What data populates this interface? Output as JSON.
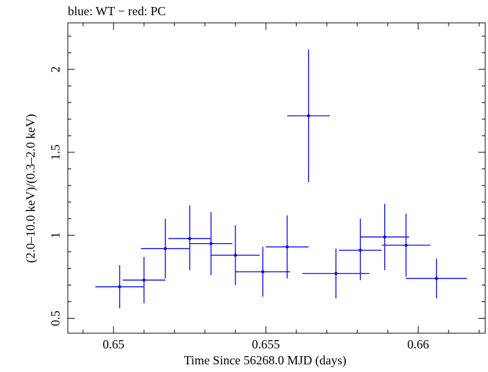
{
  "chart_data": {
    "type": "scatter",
    "title": "blue: WT − red: PC",
    "xlabel": "Time Since 56268.0 MJD (days)",
    "ylabel": "(2.0–10.0 keV)/(0.3–2.0 keV)",
    "xlim": [
      0.6485,
      0.6622
    ],
    "ylim": [
      0.41,
      2.28
    ],
    "x_ticks": [
      0.65,
      0.655,
      0.66
    ],
    "x_tick_labels": [
      "0.65",
      "0.655",
      "0.66"
    ],
    "y_ticks": [
      0.5,
      1,
      1.5,
      2
    ],
    "y_tick_labels": [
      "0.5",
      "1",
      "1.5",
      "2"
    ],
    "grid": false,
    "series": [
      {
        "color": "#0000ee",
        "points": [
          {
            "x": 0.6502,
            "y": 0.69,
            "xerr": 0.0008,
            "yerr_low": 0.13,
            "yerr_high": 0.13
          },
          {
            "x": 0.651,
            "y": 0.73,
            "xerr": 0.0007,
            "yerr_low": 0.14,
            "yerr_high": 0.14
          },
          {
            "x": 0.6517,
            "y": 0.92,
            "xerr": 0.0008,
            "yerr_low": 0.18,
            "yerr_high": 0.18
          },
          {
            "x": 0.6525,
            "y": 0.98,
            "xerr": 0.0007,
            "yerr_low": 0.19,
            "yerr_high": 0.2
          },
          {
            "x": 0.6532,
            "y": 0.95,
            "xerr": 0.0007,
            "yerr_low": 0.19,
            "yerr_high": 0.19
          },
          {
            "x": 0.654,
            "y": 0.88,
            "xerr": 0.0008,
            "yerr_low": 0.18,
            "yerr_high": 0.18
          },
          {
            "x": 0.6549,
            "y": 0.78,
            "xerr": 0.0009,
            "yerr_low": 0.15,
            "yerr_high": 0.15
          },
          {
            "x": 0.6557,
            "y": 0.93,
            "xerr": 0.0007,
            "yerr_low": 0.19,
            "yerr_high": 0.19
          },
          {
            "x": 0.6564,
            "y": 1.72,
            "xerr": 0.0007,
            "yerr_low": 0.4,
            "yerr_high": 0.4
          },
          {
            "x": 0.6573,
            "y": 0.77,
            "xerr": 0.0011,
            "yerr_low": 0.15,
            "yerr_high": 0.15
          },
          {
            "x": 0.6581,
            "y": 0.91,
            "xerr": 0.0007,
            "yerr_low": 0.18,
            "yerr_high": 0.19
          },
          {
            "x": 0.6589,
            "y": 0.99,
            "xerr": 0.0008,
            "yerr_low": 0.2,
            "yerr_high": 0.2
          },
          {
            "x": 0.6596,
            "y": 0.94,
            "xerr": 0.0008,
            "yerr_low": 0.19,
            "yerr_high": 0.19
          },
          {
            "x": 0.6606,
            "y": 0.74,
            "xerr": 0.001,
            "yerr_low": 0.12,
            "yerr_high": 0.12
          }
        ]
      }
    ]
  }
}
